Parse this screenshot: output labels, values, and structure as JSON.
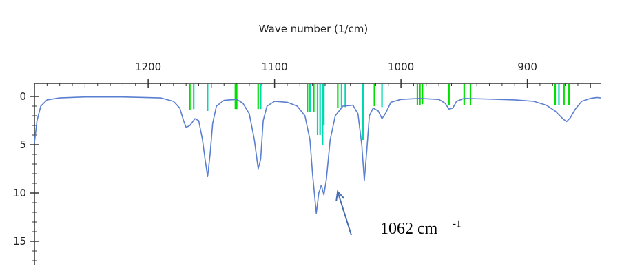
{
  "chart_data": {
    "type": "line",
    "title": "Wave number (1/cm)",
    "xlabel": "",
    "ylabel": "",
    "x_reversed": true,
    "xlim": [
      1290,
      842
    ],
    "ylim": [
      0,
      17
    ],
    "x_ticks": [
      1200,
      1100,
      1000,
      900
    ],
    "y_ticks": [
      0,
      5,
      10,
      15
    ],
    "grid": false,
    "series": [
      {
        "color": "#5b7fd0",
        "points": [
          [
            1290,
            4.8
          ],
          [
            1288,
            2.5
          ],
          [
            1285,
            1.0
          ],
          [
            1280,
            0.35
          ],
          [
            1270,
            0.15
          ],
          [
            1250,
            0.05
          ],
          [
            1220,
            0.05
          ],
          [
            1190,
            0.15
          ],
          [
            1180,
            0.5
          ],
          [
            1175,
            1.2
          ],
          [
            1172,
            2.5
          ],
          [
            1170,
            3.2
          ],
          [
            1167,
            3.0
          ],
          [
            1163,
            2.3
          ],
          [
            1160,
            2.5
          ],
          [
            1157,
            4.5
          ],
          [
            1155,
            6.5
          ],
          [
            1153,
            8.3
          ],
          [
            1151,
            6.0
          ],
          [
            1149,
            2.8
          ],
          [
            1146,
            1.0
          ],
          [
            1140,
            0.4
          ],
          [
            1130,
            0.3
          ],
          [
            1125,
            0.7
          ],
          [
            1120,
            1.8
          ],
          [
            1116,
            4.5
          ],
          [
            1113,
            7.5
          ],
          [
            1111,
            6.5
          ],
          [
            1109,
            2.5
          ],
          [
            1106,
            1.0
          ],
          [
            1100,
            0.5
          ],
          [
            1090,
            0.6
          ],
          [
            1082,
            1.0
          ],
          [
            1076,
            2.0
          ],
          [
            1072,
            4.5
          ],
          [
            1070,
            8.0
          ],
          [
            1067,
            12.1
          ],
          [
            1065,
            10.0
          ],
          [
            1063,
            9.2
          ],
          [
            1061,
            10.2
          ],
          [
            1059,
            8.6
          ],
          [
            1056,
            4.5
          ],
          [
            1052,
            2.0
          ],
          [
            1046,
            1.0
          ],
          [
            1038,
            0.9
          ],
          [
            1034,
            1.8
          ],
          [
            1031,
            5.0
          ],
          [
            1029,
            8.7
          ],
          [
            1027,
            5.5
          ],
          [
            1025,
            2.0
          ],
          [
            1022,
            1.2
          ],
          [
            1018,
            1.5
          ],
          [
            1015,
            2.3
          ],
          [
            1012,
            1.7
          ],
          [
            1008,
            0.6
          ],
          [
            1000,
            0.3
          ],
          [
            985,
            0.2
          ],
          [
            970,
            0.3
          ],
          [
            965,
            0.7
          ],
          [
            962,
            1.3
          ],
          [
            959,
            1.2
          ],
          [
            956,
            0.5
          ],
          [
            950,
            0.2
          ],
          [
            935,
            0.25
          ],
          [
            910,
            0.35
          ],
          [
            895,
            0.5
          ],
          [
            885,
            0.9
          ],
          [
            878,
            1.5
          ],
          [
            872,
            2.3
          ],
          [
            869,
            2.6
          ],
          [
            866,
            2.2
          ],
          [
            862,
            1.3
          ],
          [
            857,
            0.5
          ],
          [
            850,
            0.2
          ],
          [
            845,
            0.1
          ],
          [
            842,
            0.15
          ]
        ]
      }
    ],
    "stick_lines": [
      {
        "x": 1167,
        "len": 1.4,
        "color": "#00e000"
      },
      {
        "x": 1164,
        "len": 1.3,
        "color": "#00d8b0"
      },
      {
        "x": 1153,
        "len": 1.5,
        "color": "#00d8b0"
      },
      {
        "x": 1131,
        "len": 1.3,
        "color": "#00e000"
      },
      {
        "x": 1130,
        "len": 1.3,
        "color": "#00e000"
      },
      {
        "x": 1113,
        "len": 1.3,
        "color": "#00e000"
      },
      {
        "x": 1111,
        "len": 1.3,
        "color": "#00d8b0"
      },
      {
        "x": 1074,
        "len": 1.6,
        "color": "#00e000"
      },
      {
        "x": 1072,
        "len": 1.6,
        "color": "#00d8b0"
      },
      {
        "x": 1069,
        "len": 1.6,
        "color": "#00e000"
      },
      {
        "x": 1066,
        "len": 4.0,
        "color": "#00d8b0"
      },
      {
        "x": 1064,
        "len": 4.0,
        "color": "#00d8b0"
      },
      {
        "x": 1062,
        "len": 5.0,
        "color": "#00d8b0"
      },
      {
        "x": 1061,
        "len": 3.0,
        "color": "#00d8b0"
      },
      {
        "x": 1050,
        "len": 1.2,
        "color": "#00e000"
      },
      {
        "x": 1047,
        "len": 1.1,
        "color": "#00d8b0"
      },
      {
        "x": 1044,
        "len": 1.1,
        "color": "#00d8b0"
      },
      {
        "x": 1030,
        "len": 4.5,
        "color": "#00d8b0"
      },
      {
        "x": 1021,
        "len": 1.0,
        "color": "#00e000"
      },
      {
        "x": 1015,
        "len": 1.1,
        "color": "#00d8b0"
      },
      {
        "x": 987,
        "len": 0.9,
        "color": "#00e000"
      },
      {
        "x": 985,
        "len": 0.9,
        "color": "#00e000"
      },
      {
        "x": 983,
        "len": 0.8,
        "color": "#00e000"
      },
      {
        "x": 962,
        "len": 0.9,
        "color": "#00e000"
      },
      {
        "x": 950,
        "len": 0.9,
        "color": "#00e000"
      },
      {
        "x": 945,
        "len": 0.9,
        "color": "#00e000"
      },
      {
        "x": 878,
        "len": 0.9,
        "color": "#00e000"
      },
      {
        "x": 875,
        "len": 0.9,
        "color": "#00d8b0"
      },
      {
        "x": 871,
        "len": 0.9,
        "color": "#00e000"
      },
      {
        "x": 867,
        "len": 0.9,
        "color": "#00e000"
      }
    ],
    "annotations": [
      {
        "text": "1062 cm",
        "superscript": "-1",
        "arrow_target": [
          1061,
          10.0
        ]
      }
    ]
  }
}
